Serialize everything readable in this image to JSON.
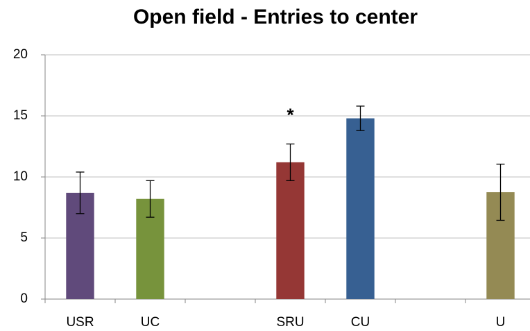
{
  "chart_data": {
    "type": "bar",
    "title": "Open field - Entries to center",
    "categories": [
      "USR",
      "UC",
      null,
      "SRU",
      "CU",
      null,
      "U"
    ],
    "values": [
      8.7,
      8.2,
      null,
      11.2,
      14.8,
      null,
      8.75
    ],
    "errors": [
      1.7,
      1.5,
      null,
      1.5,
      1.0,
      null,
      2.3
    ],
    "colors": [
      "#604a7b",
      "#77933c",
      null,
      "#953735",
      "#376092",
      null,
      "#948a54"
    ],
    "error_color": "#000000",
    "ylim": [
      0,
      20
    ],
    "yticks": [
      0,
      5,
      10,
      15,
      20
    ],
    "grid": true,
    "annotations": [
      {
        "text": "*",
        "category": "SRU"
      }
    ]
  }
}
